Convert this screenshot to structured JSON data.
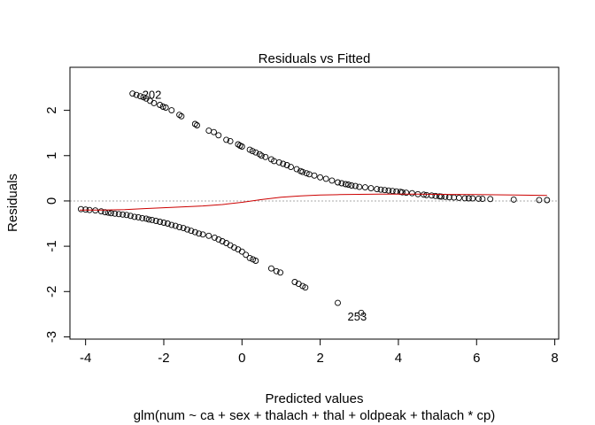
{
  "chart_data": {
    "type": "scatter",
    "title": "Residuals vs Fitted",
    "xlabel": "Predicted values",
    "subtitle": "glm(num ~ ca + sex + thalach + thal + oldpeak + thalach * cp)",
    "ylabel": "Residuals",
    "xlim": [
      -4.4,
      8.1
    ],
    "ylim": [
      -3.05,
      2.95
    ],
    "x_ticks": [
      -4,
      -2,
      0,
      2,
      4,
      6,
      8
    ],
    "x_tick_labels": [
      "-4",
      "-2",
      "0",
      "2",
      "4",
      "6",
      "8"
    ],
    "y_ticks": [
      -3,
      -2,
      -1,
      0,
      1,
      2
    ],
    "y_tick_labels": [
      "-3",
      "-2",
      "-1",
      "0",
      "1",
      "2"
    ],
    "grid": false,
    "reference_line": {
      "y": 0,
      "style": "dotted",
      "color": "#aaaaaa"
    },
    "colors": {
      "points": "#000000",
      "smoother": "#cc0000"
    },
    "series": [
      {
        "kind": "points",
        "points": [
          [
            -2.8,
            2.37
          ],
          [
            -2.7,
            2.34
          ],
          [
            -2.6,
            2.31
          ],
          [
            -2.52,
            2.29
          ],
          [
            -2.45,
            2.26
          ],
          [
            -2.35,
            2.21
          ],
          [
            -2.25,
            2.16
          ],
          [
            -2.1,
            2.12
          ],
          [
            -2.02,
            2.08
          ],
          [
            -1.95,
            2.06
          ],
          [
            -1.8,
            2.0
          ],
          [
            -1.6,
            1.9
          ],
          [
            -1.55,
            1.87
          ],
          [
            -1.2,
            1.7
          ],
          [
            -1.15,
            1.67
          ],
          [
            -0.85,
            1.55
          ],
          [
            -0.72,
            1.52
          ],
          [
            -0.6,
            1.45
          ],
          [
            -0.4,
            1.35
          ],
          [
            -0.3,
            1.32
          ],
          [
            -0.1,
            1.25
          ],
          [
            -0.05,
            1.22
          ],
          [
            0.0,
            1.2
          ],
          [
            0.2,
            1.13
          ],
          [
            0.27,
            1.1
          ],
          [
            0.35,
            1.07
          ],
          [
            0.45,
            1.03
          ],
          [
            0.5,
            1.0
          ],
          [
            0.6,
            0.97
          ],
          [
            0.75,
            0.92
          ],
          [
            0.82,
            0.88
          ],
          [
            0.95,
            0.85
          ],
          [
            1.05,
            0.82
          ],
          [
            1.15,
            0.79
          ],
          [
            1.25,
            0.75
          ],
          [
            1.4,
            0.7
          ],
          [
            1.5,
            0.66
          ],
          [
            1.55,
            0.64
          ],
          [
            1.65,
            0.61
          ],
          [
            1.72,
            0.59
          ],
          [
            1.85,
            0.56
          ],
          [
            2.0,
            0.52
          ],
          [
            2.15,
            0.49
          ],
          [
            2.3,
            0.45
          ],
          [
            2.45,
            0.41
          ],
          [
            2.55,
            0.39
          ],
          [
            2.65,
            0.37
          ],
          [
            2.72,
            0.36
          ],
          [
            2.8,
            0.34
          ],
          [
            2.9,
            0.33
          ],
          [
            3.0,
            0.31
          ],
          [
            3.15,
            0.3
          ],
          [
            3.3,
            0.28
          ],
          [
            3.45,
            0.26
          ],
          [
            3.55,
            0.25
          ],
          [
            3.65,
            0.24
          ],
          [
            3.75,
            0.23
          ],
          [
            3.85,
            0.22
          ],
          [
            3.95,
            0.21
          ],
          [
            4.05,
            0.2
          ],
          [
            4.1,
            0.19
          ],
          [
            4.2,
            0.18
          ],
          [
            4.35,
            0.17
          ],
          [
            4.5,
            0.15
          ],
          [
            4.65,
            0.14
          ],
          [
            4.72,
            0.13
          ],
          [
            4.85,
            0.12
          ],
          [
            4.95,
            0.11
          ],
          [
            5.05,
            0.1
          ],
          [
            5.1,
            0.095
          ],
          [
            5.2,
            0.09
          ],
          [
            5.3,
            0.08
          ],
          [
            5.42,
            0.075
          ],
          [
            5.55,
            0.07
          ],
          [
            5.7,
            0.06
          ],
          [
            5.8,
            0.058
          ],
          [
            5.9,
            0.055
          ],
          [
            6.05,
            0.05
          ],
          [
            6.15,
            0.045
          ],
          [
            6.35,
            0.042
          ],
          [
            6.95,
            0.03
          ],
          [
            7.6,
            0.02
          ],
          [
            7.8,
            0.018
          ],
          [
            -4.12,
            -0.18
          ],
          [
            -4.0,
            -0.19
          ],
          [
            -3.9,
            -0.2
          ],
          [
            -3.75,
            -0.21
          ],
          [
            -3.6,
            -0.23
          ],
          [
            -3.5,
            -0.25
          ],
          [
            -3.42,
            -0.26
          ],
          [
            -3.35,
            -0.27
          ],
          [
            -3.25,
            -0.28
          ],
          [
            -3.15,
            -0.29
          ],
          [
            -3.05,
            -0.3
          ],
          [
            -2.95,
            -0.31
          ],
          [
            -2.85,
            -0.33
          ],
          [
            -2.75,
            -0.35
          ],
          [
            -2.65,
            -0.36
          ],
          [
            -2.55,
            -0.38
          ],
          [
            -2.45,
            -0.39
          ],
          [
            -2.38,
            -0.41
          ],
          [
            -2.3,
            -0.42
          ],
          [
            -2.2,
            -0.44
          ],
          [
            -2.1,
            -0.46
          ],
          [
            -2.0,
            -0.48
          ],
          [
            -1.9,
            -0.5
          ],
          [
            -1.8,
            -0.53
          ],
          [
            -1.7,
            -0.55
          ],
          [
            -1.6,
            -0.58
          ],
          [
            -1.5,
            -0.6
          ],
          [
            -1.4,
            -0.63
          ],
          [
            -1.3,
            -0.66
          ],
          [
            -1.2,
            -0.69
          ],
          [
            -1.1,
            -0.72
          ],
          [
            -1.0,
            -0.74
          ],
          [
            -0.85,
            -0.77
          ],
          [
            -0.7,
            -0.81
          ],
          [
            -0.6,
            -0.85
          ],
          [
            -0.5,
            -0.89
          ],
          [
            -0.4,
            -0.93
          ],
          [
            -0.3,
            -0.98
          ],
          [
            -0.2,
            -1.03
          ],
          [
            -0.1,
            -1.07
          ],
          [
            0.0,
            -1.12
          ],
          [
            0.1,
            -1.19
          ],
          [
            0.2,
            -1.26
          ],
          [
            0.28,
            -1.29
          ],
          [
            0.35,
            -1.32
          ],
          [
            0.75,
            -1.49
          ],
          [
            0.88,
            -1.55
          ],
          [
            0.98,
            -1.58
          ],
          [
            1.35,
            -1.79
          ],
          [
            1.45,
            -1.83
          ],
          [
            1.55,
            -1.88
          ],
          [
            1.62,
            -1.91
          ],
          [
            2.45,
            -2.25
          ],
          [
            3.05,
            -2.47
          ]
        ]
      },
      {
        "kind": "smoother",
        "points": [
          [
            -4.15,
            -0.2
          ],
          [
            -3.5,
            -0.2
          ],
          [
            -3.0,
            -0.19
          ],
          [
            -2.5,
            -0.17
          ],
          [
            -2.0,
            -0.15
          ],
          [
            -1.5,
            -0.13
          ],
          [
            -1.0,
            -0.11
          ],
          [
            -0.5,
            -0.08
          ],
          [
            0.0,
            -0.03
          ],
          [
            0.5,
            0.03
          ],
          [
            1.0,
            0.08
          ],
          [
            1.5,
            0.11
          ],
          [
            2.0,
            0.13
          ],
          [
            2.5,
            0.14
          ],
          [
            3.0,
            0.145
          ],
          [
            3.5,
            0.15
          ],
          [
            4.0,
            0.15
          ],
          [
            4.5,
            0.15
          ],
          [
            5.0,
            0.145
          ],
          [
            6.0,
            0.14
          ],
          [
            7.0,
            0.13
          ],
          [
            7.8,
            0.12
          ]
        ]
      }
    ],
    "annotations": [
      {
        "text": "202",
        "x": -2.55,
        "y": 2.32
      },
      {
        "text": "253",
        "x": 2.7,
        "y": -2.57
      }
    ]
  }
}
